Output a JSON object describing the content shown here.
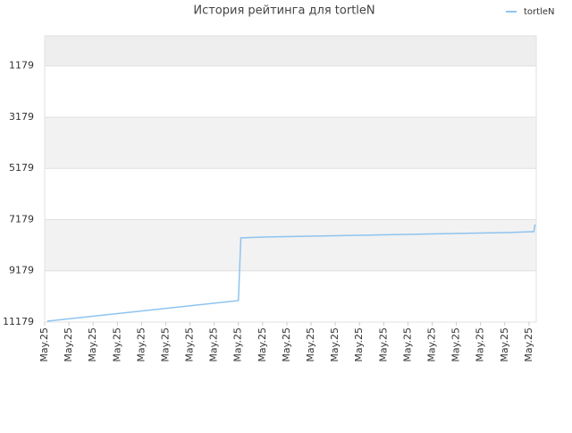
{
  "chart_data": {
    "type": "line",
    "title": "История рейтинга для tortleN",
    "x": [
      0.1,
      8.0,
      8.1,
      9.2,
      11.2,
      13.2,
      15.2,
      17.2,
      19.2,
      20.2,
      20.25
    ],
    "series": [
      {
        "name": "tortleN",
        "color": "#8ec4f0",
        "values": [
          11144,
          10340,
          7892,
          7857,
          7822,
          7787,
          7752,
          7717,
          7682,
          7647,
          7367
        ]
      }
    ],
    "xlim": [
      0,
      20.3
    ],
    "xticks": [
      {
        "value": 0,
        "label": "May.25"
      },
      {
        "value": 1,
        "label": "May.25"
      },
      {
        "value": 2,
        "label": "May.25"
      },
      {
        "value": 3,
        "label": "May.25"
      },
      {
        "value": 4,
        "label": "May.25"
      },
      {
        "value": 5,
        "label": "May.25"
      },
      {
        "value": 6,
        "label": "May.25"
      },
      {
        "value": 7,
        "label": "May.25"
      },
      {
        "value": 8,
        "label": "May.25"
      },
      {
        "value": 9,
        "label": "May.25"
      },
      {
        "value": 10,
        "label": "May.25"
      },
      {
        "value": 11,
        "label": "May.25"
      },
      {
        "value": 12,
        "label": "May.25"
      },
      {
        "value": 13,
        "label": "May.25"
      },
      {
        "value": 14,
        "label": "May.25"
      },
      {
        "value": 15,
        "label": "May.25"
      },
      {
        "value": 16,
        "label": "May.25"
      },
      {
        "value": 17,
        "label": "May.25"
      },
      {
        "value": 18,
        "label": "May.25"
      },
      {
        "value": 19,
        "label": "May.25"
      },
      {
        "value": 20,
        "label": "May.25"
      }
    ],
    "ylim": [
      11179,
      0
    ],
    "yticks": [
      1179,
      3179,
      5179,
      7179,
      9179,
      11179
    ],
    "legend": "top-right"
  }
}
